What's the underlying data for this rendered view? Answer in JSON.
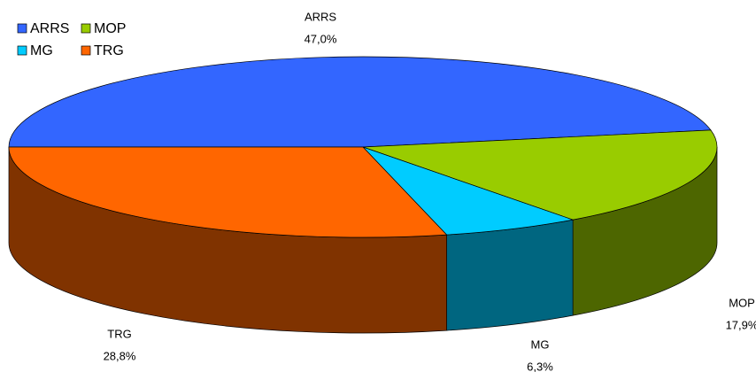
{
  "chart_data": {
    "type": "pie",
    "categories": [
      "ARRS",
      "MOP",
      "MG",
      "TRG"
    ],
    "values": [
      47.0,
      17.9,
      6.3,
      28.8
    ],
    "value_labels": [
      "47,0%",
      "17,9%",
      "6,3%",
      "28,8%"
    ],
    "colors": [
      "#3366ff",
      "#99cc00",
      "#00ccff",
      "#ff6600"
    ],
    "side_colors": [
      "#1a3380",
      "#4d6600",
      "#006680",
      "#803300"
    ],
    "legend": "top-left"
  }
}
